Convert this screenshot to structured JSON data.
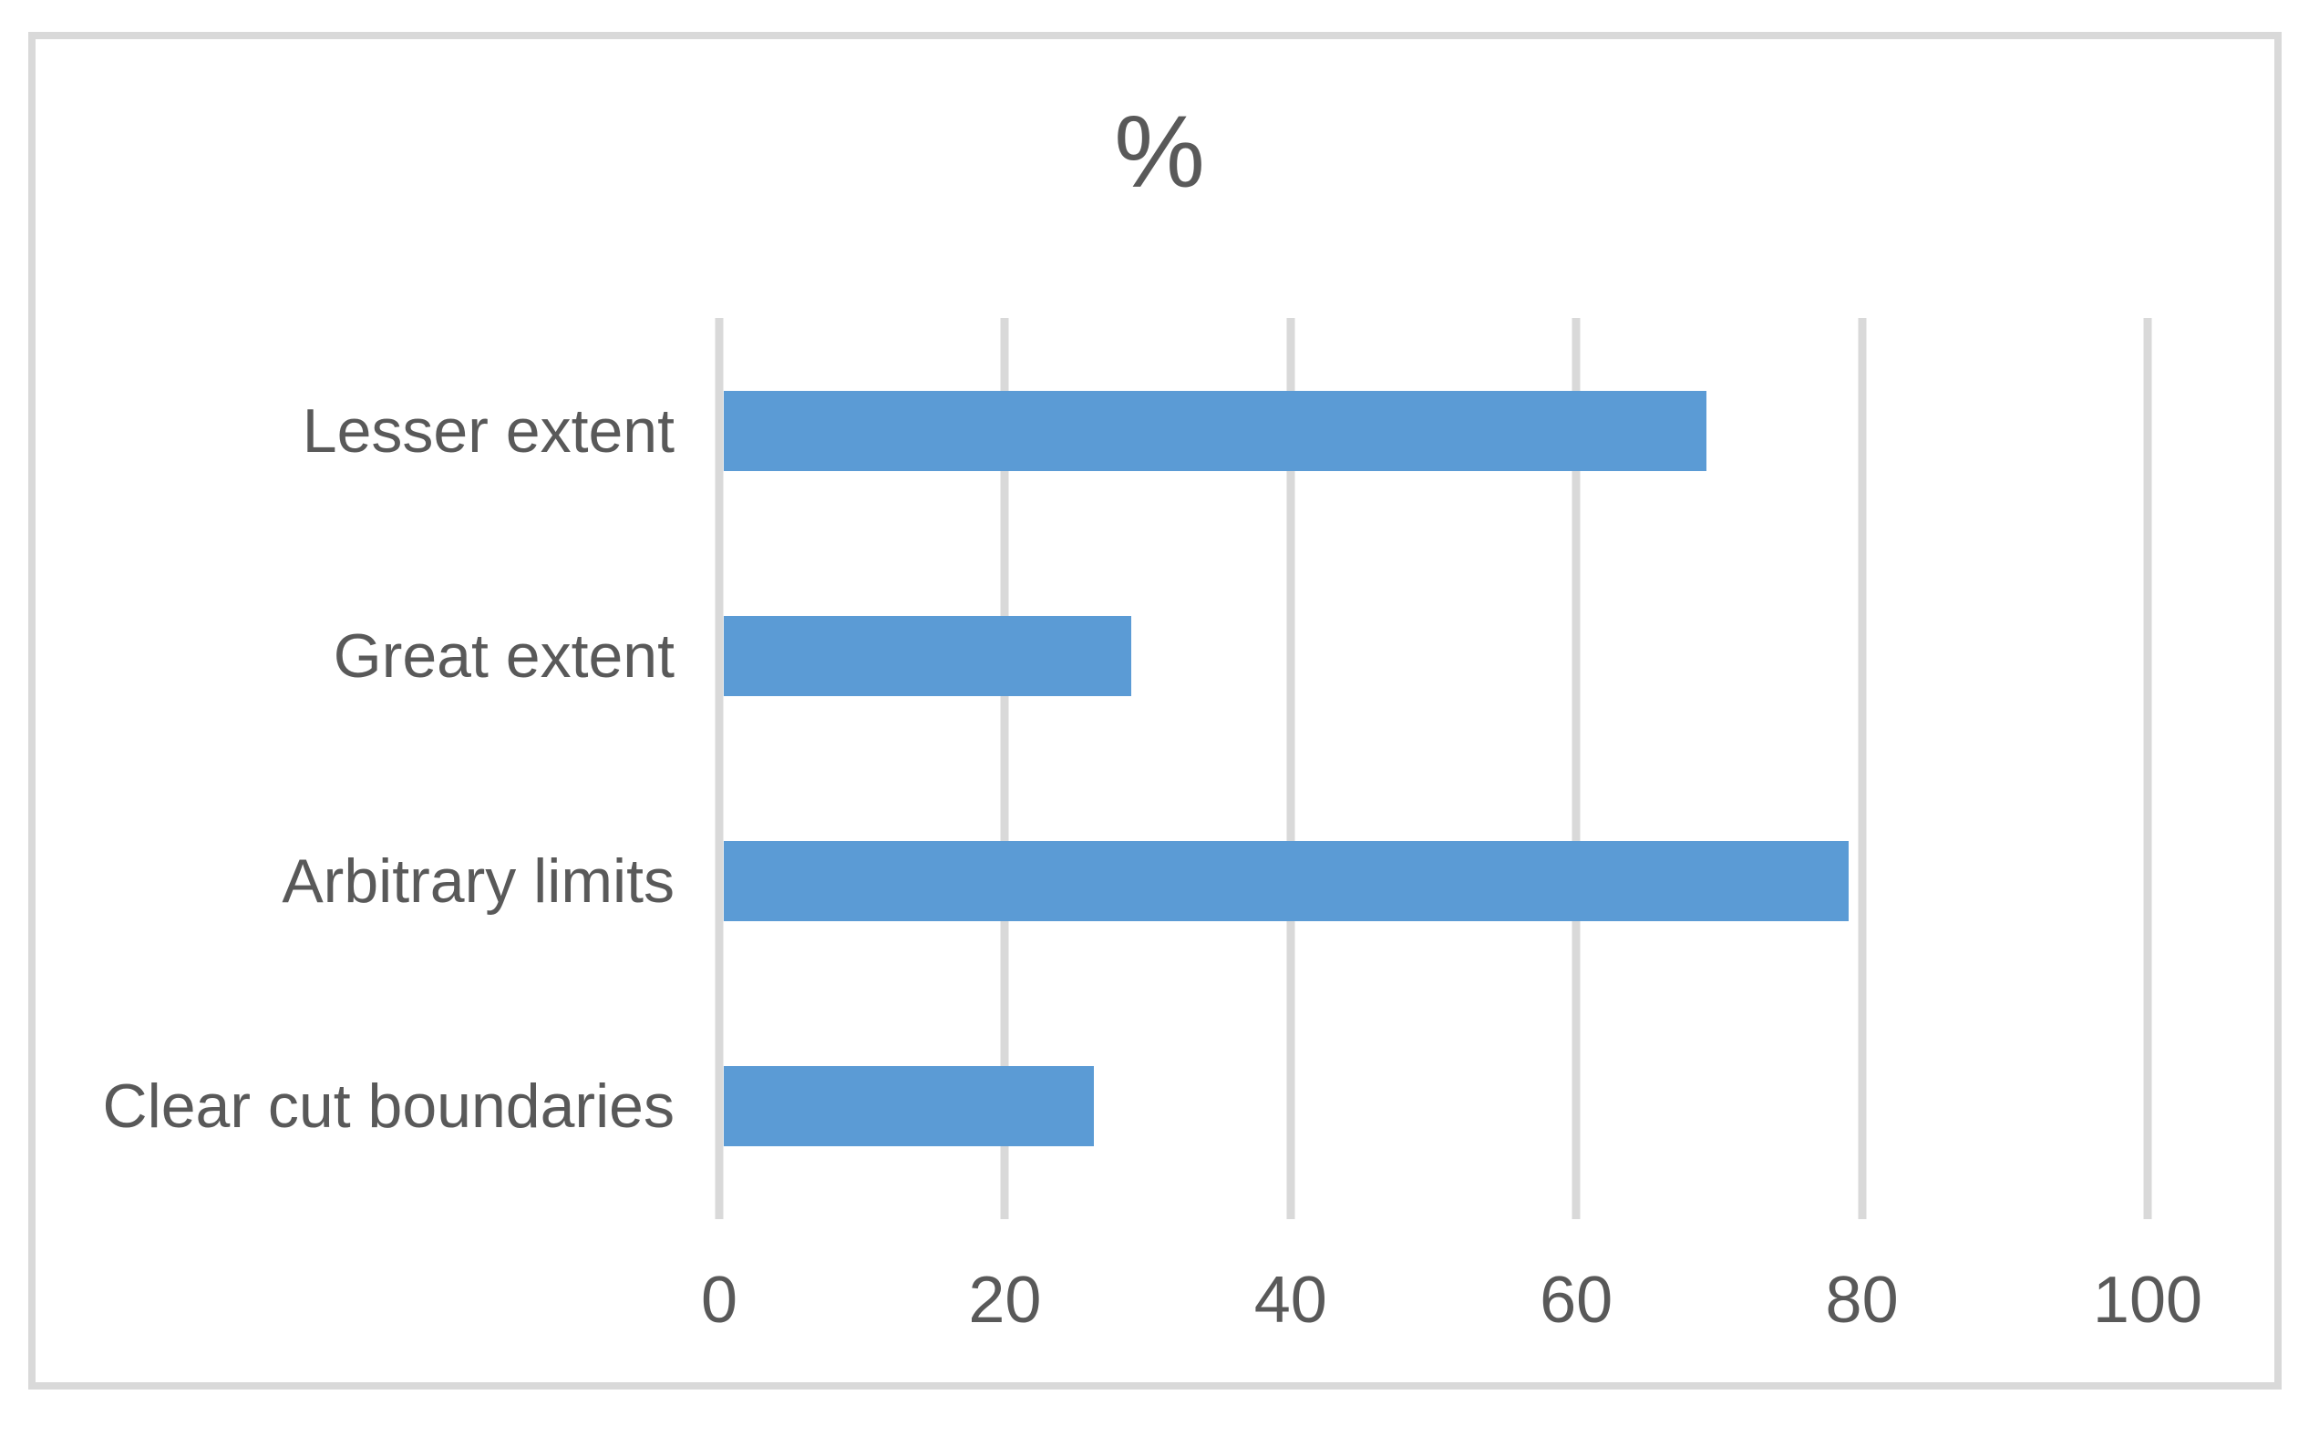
{
  "chart_data": {
    "type": "bar",
    "orientation": "horizontal",
    "title": "%",
    "categories": [
      "Lesser extent",
      "Great extent",
      "Arbitrary limits",
      "Clear cut boundaries"
    ],
    "values": [
      69,
      28.6,
      79,
      26
    ],
    "x_ticks": [
      0,
      20,
      40,
      60,
      80,
      100
    ],
    "xlim": [
      0,
      100
    ],
    "xlabel": "",
    "ylabel": "",
    "grid": "vertical-gridlines",
    "legend": "none",
    "colors": {
      "bar": "#5B9BD5",
      "gridline": "#D9D9D9",
      "border": "#D9D9D9",
      "text": "#595959",
      "background": "#FFFFFF"
    }
  }
}
